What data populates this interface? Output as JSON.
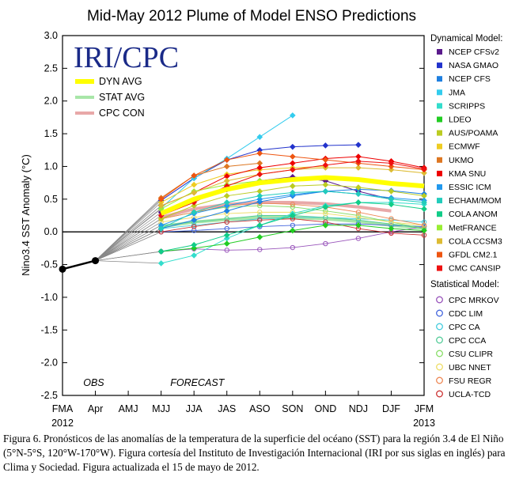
{
  "chart_data": {
    "type": "line",
    "title": "Mid-May 2012 Plume of Model ENSO Predictions",
    "ylabel": "Nino3.4 SST Anomaly (°C)",
    "xlabel": "",
    "ylim": [
      -2.5,
      3.0
    ],
    "y_ticks": [
      "3.0",
      "2.5",
      "2.0",
      "1.5",
      "1.0",
      "0.5",
      "0.0",
      "-0.5",
      "-1.0",
      "-1.5",
      "-2.0",
      "-2.5"
    ],
    "categories": [
      "FMA",
      "Apr",
      "AMJ",
      "MJJ",
      "JJA",
      "JAS",
      "ASO",
      "SON",
      "OND",
      "NDJ",
      "DJF",
      "JFM"
    ],
    "year_labels": [
      {
        "at": "FMA",
        "text": "2012"
      },
      {
        "at": "JFM",
        "text": "2013"
      }
    ],
    "obs_label": "OBS",
    "forecast_label": "FORECAST",
    "logo": "IRI/CPC",
    "inset_legend": [
      {
        "name": "DYN AVG",
        "color": "#ffff00"
      },
      {
        "name": "STAT AVG",
        "color": "#a8e6a8"
      },
      {
        "name": "CPC CON",
        "color": "#e8a8a8"
      }
    ],
    "observed": [
      -0.57,
      -0.44
    ],
    "dynamical_heading": "Dynamical Model:",
    "statistical_heading": "Statistical Model:",
    "dynamical": [
      {
        "name": "NCEP CFSv2",
        "color": "#5a1a8c",
        "values": [
          null,
          null,
          null,
          0.3,
          0.48,
          0.65,
          0.78,
          0.84,
          0.78,
          0.62,
          0.5,
          null
        ]
      },
      {
        "name": "NASA GMAO",
        "color": "#2233cc",
        "values": [
          null,
          null,
          null,
          0.48,
          0.82,
          1.1,
          1.25,
          1.3,
          1.32,
          1.33,
          null,
          null
        ]
      },
      {
        "name": "NCEP CFS",
        "color": "#1e7fe0",
        "values": [
          null,
          null,
          null,
          0.05,
          0.18,
          0.32,
          0.46,
          0.55,
          0.62,
          0.65,
          0.63,
          0.58
        ]
      },
      {
        "name": "JMA",
        "color": "#33ccee",
        "values": [
          null,
          null,
          null,
          0.36,
          0.82,
          1.12,
          1.45,
          1.78,
          null,
          null,
          null,
          null
        ]
      },
      {
        "name": "SCRIPPS",
        "color": "#33ddcc",
        "values": [
          null,
          null,
          null,
          -0.48,
          -0.36,
          -0.1,
          0.1,
          0.28,
          0.4,
          0.45,
          0.45,
          0.42
        ]
      },
      {
        "name": "LDEO",
        "color": "#22cc22",
        "values": [
          null,
          null,
          null,
          -0.3,
          -0.25,
          -0.18,
          -0.08,
          0.02,
          0.1,
          0.1,
          0.05,
          0.02
        ]
      },
      {
        "name": "AUS/POAMA",
        "color": "#bbcc22",
        "values": [
          null,
          null,
          null,
          0.2,
          0.4,
          0.55,
          0.62,
          0.7,
          0.72,
          0.68,
          0.62,
          0.55
        ]
      },
      {
        "name": "ECMWF",
        "color": "#eecc22",
        "values": [
          null,
          null,
          null,
          0.45,
          0.72,
          0.88,
          0.95,
          0.98,
          1.0,
          null,
          null,
          null
        ]
      },
      {
        "name": "UKMO",
        "color": "#dd7722",
        "values": [
          null,
          null,
          null,
          0.52,
          0.86,
          1.0,
          1.05,
          null,
          null,
          null,
          null,
          null
        ]
      },
      {
        "name": "KMA SNU",
        "color": "#ee0000",
        "values": [
          null,
          null,
          null,
          0.4,
          0.6,
          0.85,
          0.98,
          1.05,
          1.12,
          1.15,
          1.08,
          0.98
        ]
      },
      {
        "name": "ESSIC ICM",
        "color": "#2299ee",
        "values": [
          null,
          null,
          null,
          0.1,
          0.28,
          0.4,
          0.5,
          0.57,
          0.62,
          0.58,
          0.52,
          0.48
        ]
      },
      {
        "name": "ECHAM/MOM",
        "color": "#22ccbb",
        "values": [
          null,
          null,
          null,
          0.05,
          0.3,
          0.45,
          0.55,
          0.6,
          0.62,
          0.58,
          0.5,
          0.45
        ]
      },
      {
        "name": "COLA ANOM",
        "color": "#11cc88",
        "values": [
          null,
          null,
          null,
          -0.3,
          -0.2,
          -0.05,
          0.1,
          0.25,
          0.38,
          0.45,
          0.42,
          0.35
        ]
      },
      {
        "name": "MetFRANCE",
        "color": "#99ee33",
        "values": [
          null,
          null,
          null,
          0.35,
          0.62,
          0.72,
          0.78,
          null,
          null,
          null,
          null,
          null
        ]
      },
      {
        "name": "COLA CCSM3",
        "color": "#ddbb33",
        "values": [
          null,
          null,
          null,
          0.4,
          0.6,
          0.78,
          0.88,
          0.95,
          0.98,
          0.98,
          0.95,
          0.9
        ]
      },
      {
        "name": "GFDL CM2.1",
        "color": "#ee5511",
        "values": [
          null,
          null,
          null,
          0.5,
          0.86,
          1.1,
          1.2,
          1.15,
          1.1,
          1.05,
          1.0,
          0.95
        ]
      },
      {
        "name": "CMC CANSIP",
        "color": "#ee1111",
        "values": [
          null,
          null,
          null,
          0.25,
          0.45,
          0.7,
          0.88,
          0.95,
          1.02,
          1.08,
          1.05,
          0.96
        ]
      }
    ],
    "statistical": [
      {
        "name": "CPC MRKOV",
        "color": "#9955bb",
        "values": [
          null,
          null,
          null,
          -0.3,
          -0.26,
          -0.28,
          -0.27,
          -0.24,
          -0.18,
          -0.1,
          0.0,
          0.08
        ]
      },
      {
        "name": "CDC LIM",
        "color": "#4466dd",
        "values": [
          null,
          null,
          null,
          0.0,
          0.02,
          0.05,
          0.08,
          0.1,
          0.12,
          0.12,
          0.1,
          0.08
        ]
      },
      {
        "name": "CPC CA",
        "color": "#44ccdd",
        "values": [
          null,
          null,
          null,
          0.05,
          0.1,
          0.15,
          0.2,
          0.22,
          0.22,
          0.2,
          0.18,
          0.15
        ]
      },
      {
        "name": "CPC CCA",
        "color": "#55cc99",
        "values": [
          null,
          null,
          null,
          0.1,
          0.15,
          0.2,
          0.25,
          0.25,
          0.22,
          0.18,
          0.12,
          0.05
        ]
      },
      {
        "name": "CSU CLIPR",
        "color": "#88dd66",
        "values": [
          null,
          null,
          null,
          0.2,
          0.3,
          0.38,
          0.4,
          0.38,
          0.32,
          0.25,
          0.15,
          0.05
        ]
      },
      {
        "name": "UBC NNET",
        "color": "#eedd66",
        "values": [
          null,
          null,
          null,
          0.15,
          0.22,
          0.28,
          0.3,
          0.3,
          0.28,
          0.22,
          0.15,
          0.1
        ]
      },
      {
        "name": "FSU REGR",
        "color": "#ee8855",
        "values": [
          null,
          null,
          null,
          0.2,
          0.3,
          0.4,
          0.44,
          0.42,
          0.38,
          0.3,
          0.2,
          0.1
        ]
      },
      {
        "name": "UCLA-TCD",
        "color": "#cc3333",
        "values": [
          null,
          null,
          null,
          0.0,
          0.08,
          0.15,
          0.18,
          0.2,
          0.15,
          0.05,
          -0.02,
          -0.05
        ]
      }
    ],
    "dyn_avg": {
      "name": "DYN AVG",
      "values": [
        null,
        null,
        null,
        0.28,
        0.5,
        0.65,
        0.75,
        0.8,
        0.83,
        0.8,
        0.74,
        0.7
      ]
    },
    "stat_avg": {
      "name": "STAT AVG",
      "values": [
        null,
        null,
        null,
        0.08,
        0.15,
        0.19,
        0.22,
        0.22,
        0.2,
        0.16,
        0.1,
        0.06
      ]
    },
    "cpc_con": {
      "name": "CPC CON",
      "values": [
        null,
        null,
        null,
        0.22,
        0.35,
        0.42,
        0.45,
        0.45,
        0.43,
        0.38,
        0.32,
        null
      ]
    }
  },
  "caption": "Figura 6. Pronósticos de las anomalías de la temperatura de la superficie del océano (SST) para la región 3.4 de El Niño (5°N-5°S, 120°W-170°W). Figura cortesía del Instituto de Investigación Internacional (IRI por sus siglas en inglés) para Clima y Sociedad. Figura actualizada el 15 de mayo de 2012."
}
